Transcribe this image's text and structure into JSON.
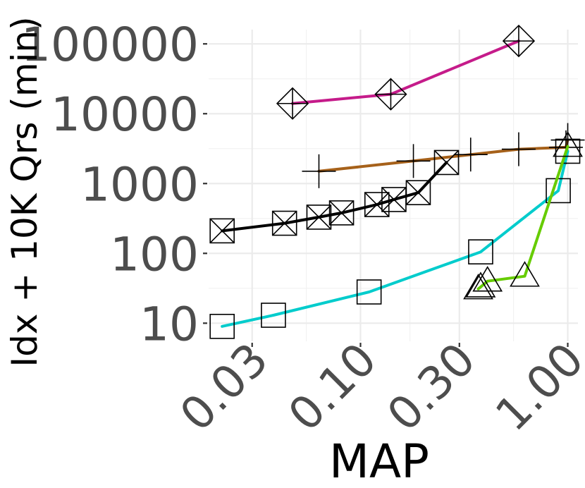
{
  "chart_data": {
    "type": "line",
    "xlabel": "MAP",
    "ylabel": "Idx + 10K Qrs (min)",
    "x_scale": "log10",
    "y_scale": "log10",
    "xlim": [
      0.0185,
      1.12
    ],
    "ylim": [
      5.5,
      160000
    ],
    "x_ticks": [
      0.03,
      0.1,
      0.3,
      1.0
    ],
    "x_tick_labels": [
      "0.03",
      "0.10",
      "0.30",
      "1.00"
    ],
    "y_ticks": [
      10,
      100,
      1000,
      10000,
      100000
    ],
    "y_tick_labels": [
      "10",
      "100",
      "1000",
      "10000",
      "100000"
    ],
    "grid": true,
    "legend": "none",
    "series": [
      {
        "color": "#c51b8a",
        "marker": "diamond-plus",
        "x": [
          0.047,
          0.14,
          0.58
        ],
        "y": [
          14000,
          19000,
          110000
        ]
      },
      {
        "color": "#a6611a",
        "marker": "plus",
        "x": [
          0.063,
          0.18,
          0.34,
          0.58,
          0.98,
          1.0
        ],
        "y": [
          1500,
          2100,
          2600,
          3100,
          3300,
          4200
        ]
      },
      {
        "color": "#000000",
        "marker": "square-x",
        "x": [
          0.0215,
          0.043,
          0.063,
          0.081,
          0.12,
          0.145,
          0.19,
          0.26
        ],
        "y": [
          210,
          270,
          330,
          380,
          500,
          590,
          740,
          2000
        ]
      },
      {
        "color": "#00cccc",
        "marker": "square",
        "x": [
          0.0215,
          0.038,
          0.11,
          0.38,
          0.9,
          1.0
        ],
        "y": [
          9,
          13,
          28,
          105,
          790,
          2900
        ]
      },
      {
        "color": "#66cc00",
        "marker": "triangle",
        "x": [
          0.37,
          0.38,
          0.41,
          0.62,
          1.0
        ],
        "y": [
          31,
          33,
          40,
          47,
          3400
        ]
      }
    ]
  }
}
